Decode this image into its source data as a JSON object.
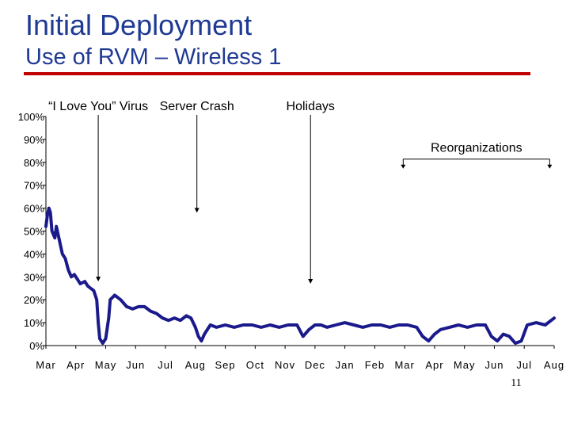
{
  "slide": {
    "title": "Initial Deployment",
    "subtitle": "Use of RVM – Wireless 1",
    "page_number": "11",
    "accent_color": "#c00000",
    "title_color": "#1f3a93",
    "line_color": "#1a1a8c"
  },
  "chart_data": {
    "type": "line",
    "title": "",
    "xlabel": "",
    "ylabel": "",
    "ylim": [
      0,
      100
    ],
    "y_ticks": [
      0,
      10,
      20,
      30,
      40,
      50,
      60,
      70,
      80,
      90,
      100
    ],
    "y_tick_labels": [
      "0%",
      "10%",
      "20%",
      "30%",
      "40%",
      "50%",
      "60%",
      "70%",
      "80%",
      "90%",
      "100%"
    ],
    "x_tick_labels": [
      "Mar",
      "Apr",
      "May",
      "Jun",
      "Jul",
      "Aug",
      "Sep",
      "Oct",
      "Nov",
      "Dec",
      "Jan",
      "Feb",
      "Mar",
      "Apr",
      "May",
      "Jun",
      "Jul",
      "Aug"
    ],
    "xlim": [
      0,
      17
    ],
    "grid": false,
    "series": [
      {
        "x": [
          0,
          0.05,
          0.1,
          0.15,
          0.2,
          0.3,
          0.35,
          0.45,
          0.55,
          0.65,
          0.75,
          0.85,
          0.95,
          1.05,
          1.15,
          1.3,
          1.4,
          1.5,
          1.6,
          1.7,
          1.75,
          1.8,
          1.9,
          2.0,
          2.1,
          2.15,
          2.3,
          2.5,
          2.7,
          2.9,
          3.1,
          3.3,
          3.5,
          3.7,
          3.9,
          4.1,
          4.3,
          4.5,
          4.7,
          4.85,
          5.0,
          5.1,
          5.2,
          5.3,
          5.5,
          5.7,
          6.0,
          6.3,
          6.6,
          6.9,
          7.2,
          7.5,
          7.8,
          8.1,
          8.4,
          8.6,
          8.8,
          9.0,
          9.2,
          9.4,
          9.7,
          10.0,
          10.3,
          10.6,
          10.9,
          11.2,
          11.5,
          11.8,
          12.1,
          12.4,
          12.6,
          12.8,
          13.0,
          13.2,
          13.5,
          13.8,
          14.1,
          14.4,
          14.7,
          14.9,
          15.1,
          15.3,
          15.5,
          15.7,
          15.9,
          16.1,
          16.4,
          16.7,
          17.0
        ],
        "y": [
          52,
          57,
          60,
          58,
          50,
          47,
          52,
          46,
          40,
          38,
          33,
          30,
          31,
          29,
          27,
          28,
          26,
          25,
          24,
          20,
          10,
          3,
          1,
          3,
          12,
          20,
          22,
          20,
          17,
          16,
          17,
          17,
          15,
          14,
          12,
          11,
          12,
          11,
          13,
          12,
          8,
          4,
          2,
          5,
          9,
          8,
          9,
          8,
          9,
          9,
          8,
          9,
          8,
          9,
          9,
          4,
          7,
          9,
          9,
          8,
          9,
          10,
          9,
          8,
          9,
          9,
          8,
          9,
          9,
          8,
          4,
          2,
          5,
          7,
          8,
          9,
          8,
          9,
          9,
          4,
          2,
          5,
          4,
          1,
          2,
          9,
          10,
          9,
          12
        ]
      }
    ],
    "annotations": [
      {
        "text": "“I Love You” Virus",
        "x": 1.75,
        "y": 28
      },
      {
        "text": "Server Crash",
        "x": 5.05,
        "y": 58
      },
      {
        "text": "Holidays",
        "x": 8.85,
        "y": 27
      },
      {
        "text": "Reorganizations",
        "x_start": 11.95,
        "x_end": 16.85,
        "y": 79
      }
    ]
  }
}
